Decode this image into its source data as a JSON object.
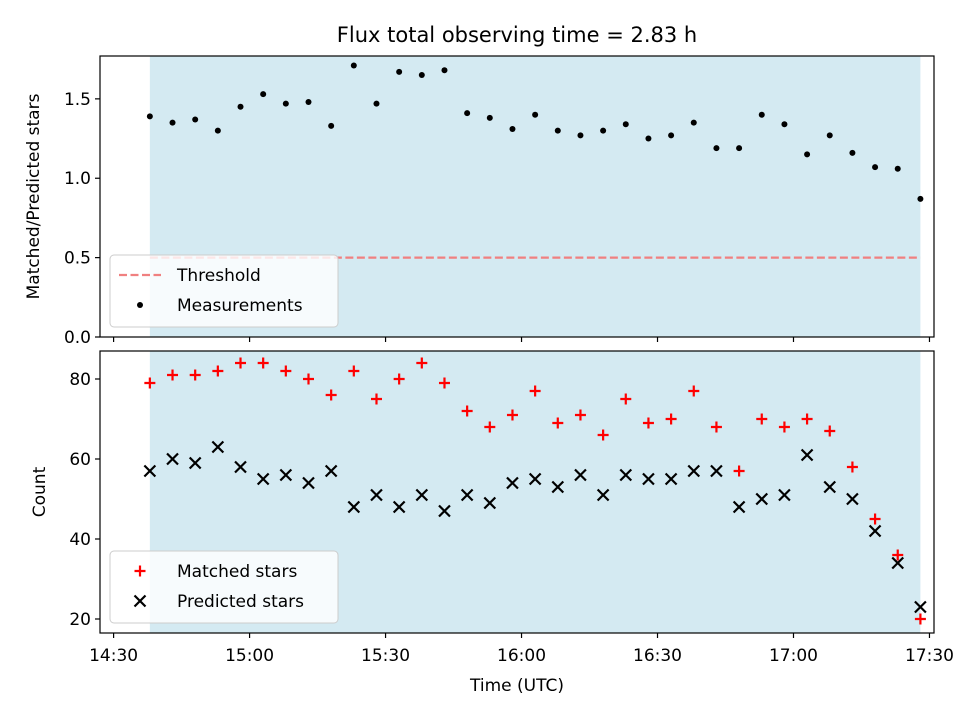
{
  "title": "Flux total observing time = 2.83 h",
  "chart_data": [
    {
      "type": "scatter",
      "ylabel": "Matched/Predicted stars",
      "xlabel": "",
      "ylim": [
        0,
        1.77
      ],
      "yticks": [
        "0.0",
        "0.5",
        "1.0",
        "1.5"
      ],
      "xlim": [
        "14:27",
        "17:31"
      ],
      "xticks": [
        "14:30",
        "15:00",
        "15:30",
        "16:00",
        "16:30",
        "17:00",
        "17:30"
      ],
      "grid": false,
      "shaded_interval": [
        "14:38",
        "17:28"
      ],
      "shade_color": "#add8e6",
      "legend_placement": "lower-left",
      "threshold": {
        "name": "Threshold",
        "value": 0.5,
        "color": "#f08080",
        "style": "dashed"
      },
      "series": [
        {
          "name": "Measurements",
          "color": "#000000",
          "marker": "dot",
          "x": [
            "14:38",
            "14:43",
            "14:48",
            "14:53",
            "14:58",
            "15:03",
            "15:08",
            "15:13",
            "15:18",
            "15:23",
            "15:28",
            "15:33",
            "15:38",
            "15:43",
            "15:48",
            "15:53",
            "15:58",
            "16:03",
            "16:08",
            "16:13",
            "16:18",
            "16:23",
            "16:28",
            "16:33",
            "16:38",
            "16:43",
            "16:48",
            "16:53",
            "16:58",
            "17:03",
            "17:08",
            "17:13",
            "17:18",
            "17:23",
            "17:28"
          ],
          "y": [
            1.39,
            1.35,
            1.37,
            1.3,
            1.45,
            1.53,
            1.47,
            1.48,
            1.33,
            1.71,
            1.47,
            1.67,
            1.65,
            1.68,
            1.41,
            1.38,
            1.31,
            1.4,
            1.3,
            1.27,
            1.3,
            1.34,
            1.25,
            1.27,
            1.35,
            1.19,
            1.19,
            1.4,
            1.34,
            1.15,
            1.27,
            1.16,
            1.07,
            1.06,
            0.87
          ]
        }
      ]
    },
    {
      "type": "scatter",
      "ylabel": "Count",
      "xlabel": "Time (UTC)",
      "ylim": [
        16.5,
        87
      ],
      "yticks": [
        "20",
        "40",
        "60",
        "80"
      ],
      "xlim": [
        "14:27",
        "17:31"
      ],
      "xticks": [
        "14:30",
        "15:00",
        "15:30",
        "16:00",
        "16:30",
        "17:00",
        "17:30"
      ],
      "grid": false,
      "shaded_interval": [
        "14:38",
        "17:28"
      ],
      "shade_color": "#add8e6",
      "legend_placement": "lower-left",
      "series": [
        {
          "name": "Matched stars",
          "color": "#ff0000",
          "marker": "plus",
          "x": [
            "14:38",
            "14:43",
            "14:48",
            "14:53",
            "14:58",
            "15:03",
            "15:08",
            "15:13",
            "15:18",
            "15:23",
            "15:28",
            "15:33",
            "15:38",
            "15:43",
            "15:48",
            "15:53",
            "15:58",
            "16:03",
            "16:08",
            "16:13",
            "16:18",
            "16:23",
            "16:28",
            "16:33",
            "16:38",
            "16:43",
            "16:48",
            "16:53",
            "16:58",
            "17:03",
            "17:08",
            "17:13",
            "17:18",
            "17:23",
            "17:28"
          ],
          "y": [
            79,
            81,
            81,
            82,
            84,
            84,
            82,
            80,
            76,
            82,
            75,
            80,
            84,
            79,
            72,
            68,
            71,
            77,
            69,
            71,
            66,
            75,
            69,
            70,
            77,
            68,
            57,
            70,
            68,
            70,
            67,
            58,
            45,
            36,
            20
          ]
        },
        {
          "name": "Predicted stars",
          "color": "#000000",
          "marker": "x",
          "x": [
            "14:38",
            "14:43",
            "14:48",
            "14:53",
            "14:58",
            "15:03",
            "15:08",
            "15:13",
            "15:18",
            "15:23",
            "15:28",
            "15:33",
            "15:38",
            "15:43",
            "15:48",
            "15:53",
            "15:58",
            "16:03",
            "16:08",
            "16:13",
            "16:18",
            "16:23",
            "16:28",
            "16:33",
            "16:38",
            "16:43",
            "16:48",
            "16:53",
            "16:58",
            "17:03",
            "17:08",
            "17:13",
            "17:18",
            "17:23",
            "17:28"
          ],
          "y": [
            57,
            60,
            59,
            63,
            58,
            55,
            56,
            54,
            57,
            48,
            51,
            48,
            51,
            47,
            51,
            49,
            54,
            55,
            53,
            56,
            51,
            56,
            55,
            55,
            57,
            57,
            48,
            50,
            51,
            61,
            53,
            50,
            42,
            34,
            23
          ]
        }
      ]
    }
  ]
}
